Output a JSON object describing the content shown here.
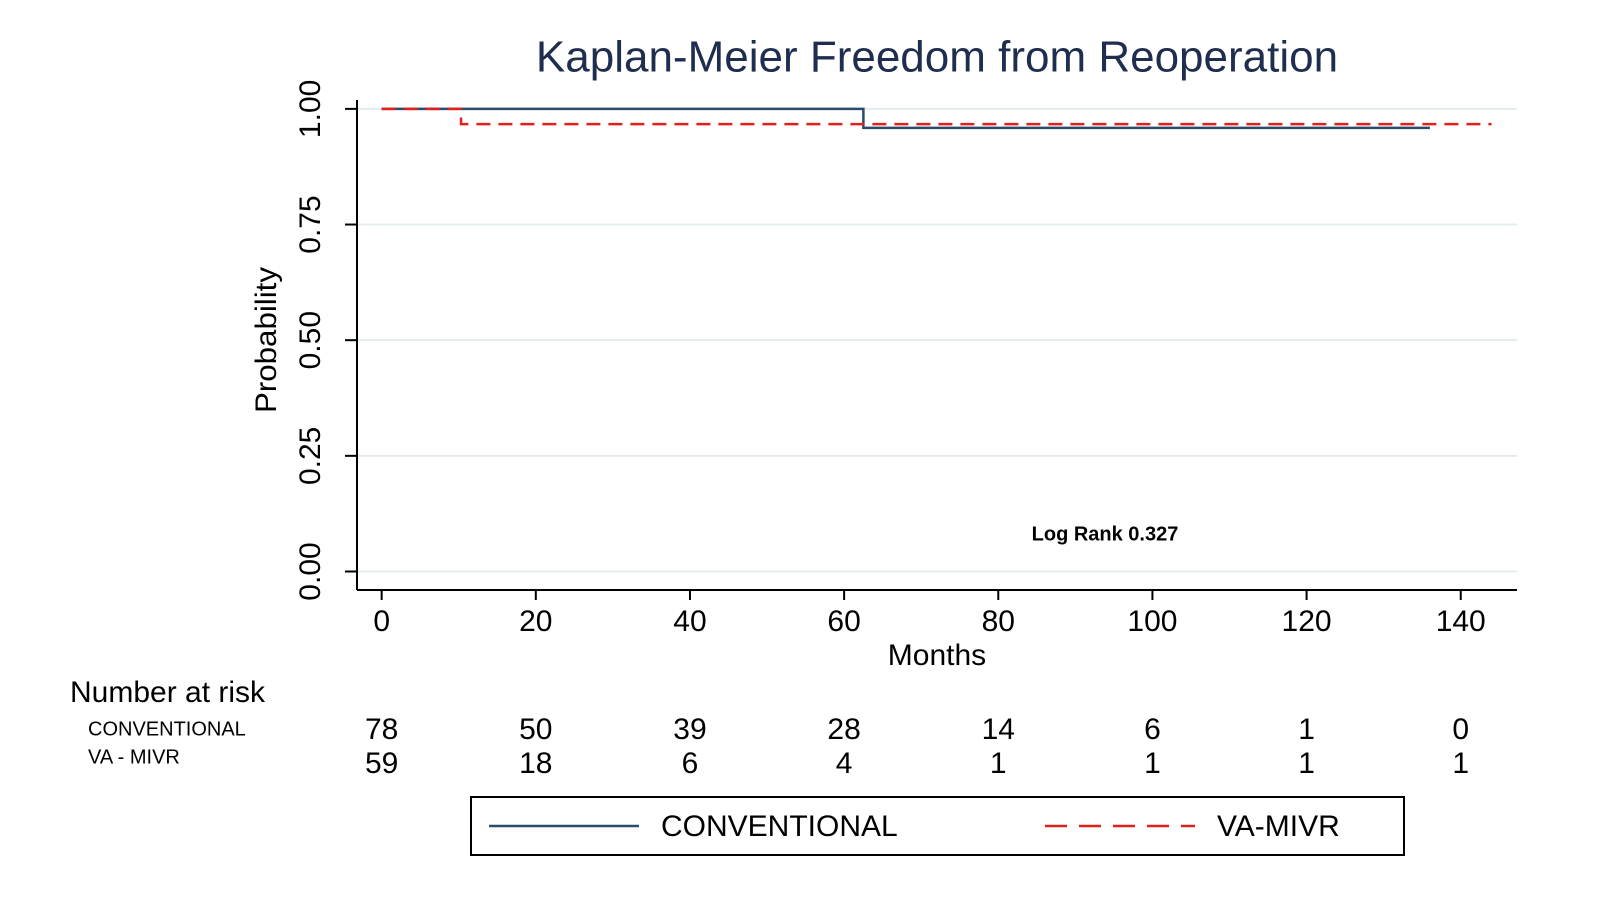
{
  "chart_data": {
    "type": "line",
    "step": "post",
    "title": "Kaplan-Meier Freedom from Reoperation",
    "x_label": "Months",
    "y_label": "Probability",
    "annotation": "Log Rank  0.327",
    "xlim": [
      -3.2,
      147.3
    ],
    "ylim": [
      -0.04,
      1.03
    ],
    "xticks": [
      0,
      20,
      40,
      60,
      80,
      100,
      120,
      140
    ],
    "yticks": [
      {
        "value": 0,
        "label": "0.00"
      },
      0.25,
      {
        "value": 0.5,
        "label": "0.50"
      },
      0.75,
      {
        "value": 1,
        "label": "1.00"
      }
    ],
    "grid": true,
    "series": [
      {
        "name": "CONVENTIONAL",
        "color": "#2a4a6e",
        "dash": false,
        "x": [
          0,
          62.5,
          136
        ],
        "values": [
          1,
          0.959,
          0.959
        ]
      },
      {
        "name": "VA-MIVR",
        "color": "#e0201b",
        "dash": true,
        "x": [
          0,
          10.3,
          144
        ],
        "values": [
          1,
          0.967,
          0.967
        ]
      }
    ],
    "risk_table": {
      "title": "Number at risk",
      "rows": [
        {
          "name": "CONVENTIONAL",
          "values": [
            78,
            50,
            39,
            28,
            14,
            6,
            1,
            0
          ]
        },
        {
          "name": "VA - MIVR",
          "values": [
            59,
            18,
            6,
            4,
            1,
            1,
            1,
            1
          ]
        }
      ]
    }
  }
}
